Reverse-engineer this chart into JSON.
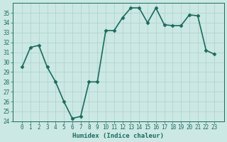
{
  "x": [
    0,
    1,
    2,
    3,
    4,
    5,
    6,
    7,
    8,
    9,
    10,
    11,
    12,
    13,
    14,
    15,
    16,
    17,
    18,
    19,
    20,
    21,
    22,
    23
  ],
  "y": [
    29.5,
    31.5,
    31.7,
    29.5,
    28.0,
    26.0,
    24.3,
    24.5,
    28.0,
    28.0,
    33.2,
    33.2,
    34.5,
    35.5,
    35.5,
    34.0,
    35.5,
    33.8,
    33.7,
    33.7,
    34.8,
    34.7,
    31.2,
    30.8
  ],
  "line_color": "#1a6b5e",
  "marker": "D",
  "markersize": 2.5,
  "bg_color": "#cce8e4",
  "grid_color": "#b0d4d0",
  "tick_color": "#1a6b5e",
  "xlabel": "Humidex (Indice chaleur)",
  "ylim": [
    24,
    36
  ],
  "yticks": [
    24,
    25,
    26,
    27,
    28,
    29,
    30,
    31,
    32,
    33,
    34,
    35
  ],
  "xticks": [
    0,
    1,
    2,
    3,
    4,
    5,
    6,
    7,
    8,
    9,
    10,
    11,
    12,
    13,
    14,
    15,
    16,
    17,
    18,
    19,
    20,
    21,
    22,
    23
  ],
  "axis_fontsize": 6.5,
  "tick_fontsize": 5.5,
  "linewidth": 1.2
}
